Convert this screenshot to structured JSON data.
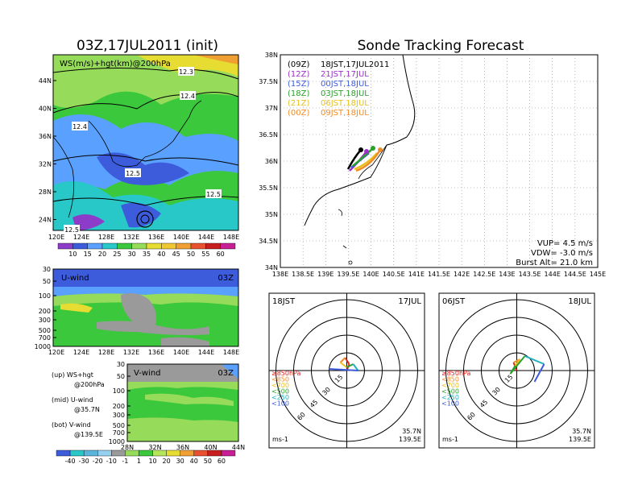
{
  "titles": {
    "left": "03Z,17JUL2011 (init)",
    "right": "Sonde Tracking Forecast"
  },
  "map_panel": {
    "label": "WS(m/s)+hgt(km)@200hPa",
    "y_ticks": [
      "44N",
      "40N",
      "36N",
      "32N",
      "28N",
      "24N"
    ],
    "x_ticks": [
      "120E",
      "124E",
      "128E",
      "132E",
      "136E",
      "140E",
      "144E",
      "148E"
    ],
    "contour_labels": [
      "12.3",
      "12.4",
      "12.4",
      "12.5",
      "12.5",
      "12.5"
    ],
    "colorbar_ticks": [
      "10",
      "15",
      "20",
      "25",
      "30",
      "35",
      "40",
      "45",
      "50",
      "55",
      "60"
    ]
  },
  "uwind_panel": {
    "label": "U-wind",
    "time": "03Z",
    "y_ticks": [
      "30",
      "50",
      "100",
      "200",
      "300",
      "500",
      "700",
      "1000"
    ],
    "x_ticks": [
      "120E",
      "124E",
      "128E",
      "132E",
      "136E",
      "140E",
      "144E",
      "148E"
    ]
  },
  "vwind_panel": {
    "label": "V-wind",
    "time": "03Z",
    "y_ticks": [
      "30",
      "50",
      "100",
      "200",
      "300",
      "500",
      "700",
      "1000"
    ],
    "x_ticks": [
      "28N",
      "32N",
      "36N",
      "40N",
      "44N"
    ],
    "colorbar_ticks": [
      "-40",
      "-30",
      "-20",
      "-10",
      "-1",
      "1",
      "10",
      "20",
      "30",
      "40",
      "50",
      "60"
    ]
  },
  "panel_notes": [
    {
      "a": "(up) WS+hgt",
      "b": "@200hPa"
    },
    {
      "a": "(mid) U-wind",
      "b": "@35.7N"
    },
    {
      "a": "(bot) V-wind",
      "b": "@139.5E"
    }
  ],
  "track_panel": {
    "y_ticks": [
      "38N",
      "37.5N",
      "37N",
      "36.5N",
      "36N",
      "35.5N",
      "35N",
      "34.5N",
      "34N"
    ],
    "x_ticks": [
      "138E",
      "138.5E",
      "139E",
      "139.5E",
      "140E",
      "140.5E",
      "141E",
      "141.5E",
      "142E",
      "142.5E",
      "143E",
      "143.5E",
      "144E",
      "144.5E",
      "145E"
    ],
    "legend": [
      {
        "code": "(09Z)",
        "label": "18JST,17JUL2011",
        "color": "#000000"
      },
      {
        "code": "(12Z)",
        "label": "21JST,17JUL",
        "color": "#9b30c8"
      },
      {
        "code": "(15Z)",
        "label": "00JST,18JUL",
        "color": "#3c5cdc"
      },
      {
        "code": "(18Z)",
        "label": "03JST,18JUL",
        "color": "#2ca02c"
      },
      {
        "code": "(21Z)",
        "label": "06JST,18JUL",
        "color": "#e8c020"
      },
      {
        "code": "(00Z)",
        "label": "09JST,18JUL",
        "color": "#f08c28"
      }
    ],
    "params": [
      "VUP= 4.5 m/s",
      "VDW= -3.0 m/s",
      "Burst Alt= 21.0 km"
    ]
  },
  "hodographs": [
    {
      "time": "18JST",
      "date": "17JUL",
      "lat": "35.7N",
      "lon": "139.5E",
      "unit": "ms-1",
      "ring_labels": [
        "15",
        "30",
        "45",
        "60"
      ],
      "levels": [
        {
          "label": "≥850hPa",
          "color": "#e0201c"
        },
        {
          "label": "<850",
          "color": "#f08c28"
        },
        {
          "label": "<700",
          "color": "#e8c020"
        },
        {
          "label": "<500",
          "color": "#2ca02c"
        },
        {
          "label": "<250",
          "color": "#20b0c0"
        },
        {
          "label": "<100",
          "color": "#3c5cdc"
        }
      ]
    },
    {
      "time": "06JST",
      "date": "18JUL",
      "lat": "35.7N",
      "lon": "139.5E",
      "unit": "ms-1",
      "ring_labels": [
        "15",
        "30",
        "45",
        "60"
      ],
      "levels": [
        {
          "label": "≥850hPa",
          "color": "#e0201c"
        },
        {
          "label": "<850",
          "color": "#f08c28"
        },
        {
          "label": "<700",
          "color": "#e8c020"
        },
        {
          "label": "<500",
          "color": "#2ca02c"
        },
        {
          "label": "<250",
          "color": "#20b0c0"
        },
        {
          "label": "<100",
          "color": "#3c5cdc"
        }
      ]
    }
  ],
  "colors": {
    "purple": "#8c3cc8",
    "blue": "#3c5cdc",
    "lightblue": "#5aa0ff",
    "cyan": "#28c8c8",
    "green": "#3cc83c",
    "lightgreen": "#96dc5a",
    "yellow": "#e6dc32",
    "orange": "#f0a032",
    "red": "#e03c28",
    "gray": "#9a9a9a"
  }
}
